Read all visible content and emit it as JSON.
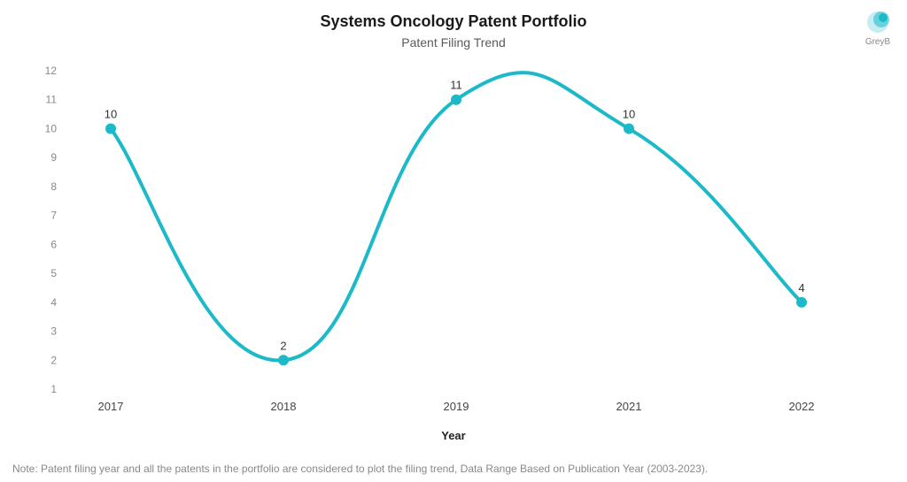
{
  "title": "Systems Oncology Patent Portfolio",
  "subtitle": "Patent Filing Trend",
  "xlabel": "Year",
  "footnote": "Note: Patent filing year and all the patents in the portfolio are considered to plot the filing trend, Data Range Based on Publication Year (2003-2023).",
  "logo_text": "GreyB",
  "chart": {
    "type": "line",
    "categories": [
      "2017",
      "2018",
      "2019",
      "2021",
      "2022"
    ],
    "values": [
      10,
      2,
      11,
      10,
      4
    ],
    "ylim": [
      1,
      12
    ],
    "yticks": [
      1,
      2,
      3,
      4,
      5,
      6,
      7,
      8,
      9,
      10,
      11,
      12
    ],
    "line_color": "#1cb9c8",
    "marker_color": "#1cb9c8",
    "line_width": 4,
    "marker_radius": 6,
    "background_color": "#ffffff",
    "tick_color": "#888888",
    "label_color": "#333333",
    "title_fontsize": 18,
    "subtitle_fontsize": 14
  }
}
